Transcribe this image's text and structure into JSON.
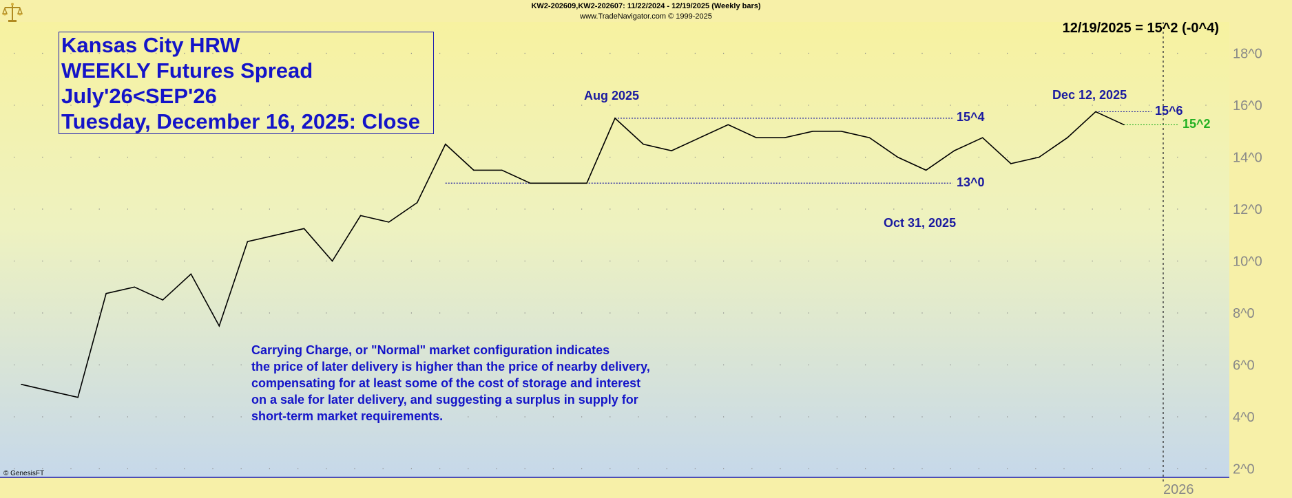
{
  "header": {
    "line1": "KW2-202609,KW2-202607:  11/22/2024 - 12/19/2025  (Weekly bars)",
    "line2": "www.TradeNavigator.com © 1999-2025"
  },
  "last_value_label": "12/19/2025 = 15^2 (-0^4)",
  "title_box": [
    "Kansas City HRW",
    "WEEKLY Futures Spread",
    "July'26<SEP'26",
    "Tuesday, December 16, 2025: Close"
  ],
  "note_lines": [
    "Carrying Charge, or \"Normal\" market configuration indicates",
    "the price of later delivery is higher than the price of nearby delivery,",
    "compensating for at least some of the cost of storage and interest",
    "on a sale for later delivery, and suggesting a surplus in supply for",
    "short-term market requirements."
  ],
  "annotations": {
    "aug": "Aug 2025",
    "dec": "Dec 12, 2025",
    "oct": "Oct 31, 2025",
    "level_154": "15^4",
    "level_130": "13^0",
    "level_156": "15^6",
    "level_152": "15^2"
  },
  "footer_credit": "© GenesisFT",
  "colors": {
    "line": "#000000",
    "annotation": "#1a1aa0",
    "last_price": "#22b022",
    "bg_top": "#f7f2a0",
    "bg_bottom": "#c6d8ea"
  },
  "chart_data": {
    "type": "line",
    "series": [
      {
        "values": [
          5.25,
          5.0,
          4.75,
          8.75,
          9.0,
          8.5,
          9.5,
          7.5,
          10.75,
          11.0,
          11.25,
          10.0,
          11.75,
          11.5,
          12.25,
          14.5,
          13.5,
          13.5,
          13.0,
          13.0,
          13.0,
          15.5,
          14.5,
          14.25,
          14.75,
          15.25,
          14.75,
          14.75,
          15.0,
          15.0,
          14.75,
          14.0,
          13.5,
          14.25,
          14.75,
          13.75,
          14.0,
          14.75,
          15.75,
          15.25
        ]
      }
    ],
    "ylim": [
      1.75,
      19.0
    ],
    "yticks": [
      2,
      4,
      6,
      8,
      10,
      12,
      14,
      16,
      18
    ],
    "ytick_labels": [
      "2^0",
      "4^0",
      "6^0",
      "8^0",
      "10^0",
      "12^0",
      "14^0",
      "16^0",
      "18^0"
    ],
    "xtick_labels": [
      "2026"
    ],
    "reference_lines": [
      {
        "value": 15.5,
        "label": "15^4"
      },
      {
        "value": 13.0,
        "label": "13^0"
      },
      {
        "value": 15.75,
        "label": "15^6"
      },
      {
        "value": 15.25,
        "label": "15^2"
      }
    ],
    "grid": true
  }
}
